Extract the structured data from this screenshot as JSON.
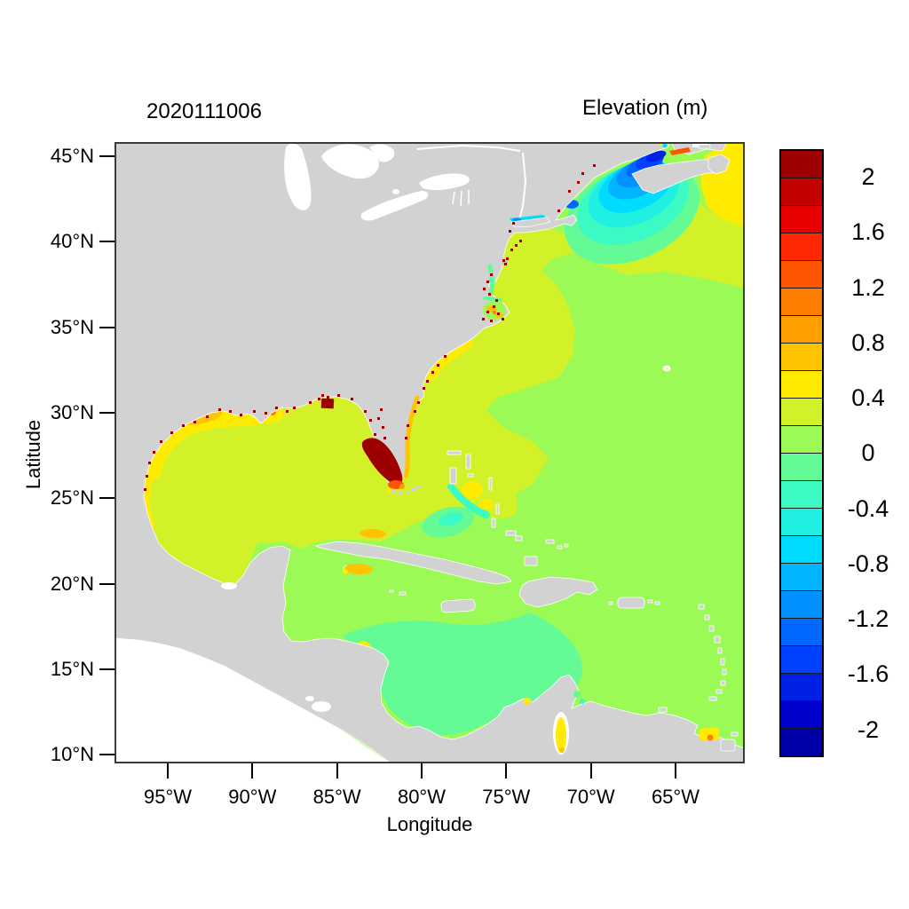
{
  "figure": {
    "left_title": "2020111006",
    "right_title": "Elevation (m)"
  },
  "x_axis": {
    "label": "Longitude",
    "ticks": [
      "95°W",
      "90°W",
      "85°W",
      "80°W",
      "75°W",
      "70°W",
      "65°W"
    ]
  },
  "y_axis": {
    "label": "Latitude",
    "ticks": [
      "45°N",
      "40°N",
      "35°N",
      "30°N",
      "25°N",
      "20°N",
      "15°N",
      "10°N"
    ]
  },
  "colorbar": {
    "title": "Elevation (m)",
    "tick_labels": [
      "2",
      "1.6",
      "1.2",
      "0.8",
      "0.4",
      "0",
      "-0.4",
      "-0.8",
      "-1.2",
      "-1.6",
      "-2"
    ],
    "levels": [
      {
        "from": 2.0,
        "to": 2.2,
        "color": "#9E0000"
      },
      {
        "from": 1.8,
        "to": 2.0,
        "color": "#C40000"
      },
      {
        "from": 1.6,
        "to": 1.8,
        "color": "#E80000"
      },
      {
        "from": 1.4,
        "to": 1.6,
        "color": "#FF2800"
      },
      {
        "from": 1.2,
        "to": 1.4,
        "color": "#FF5500"
      },
      {
        "from": 1.0,
        "to": 1.2,
        "color": "#FF7D00"
      },
      {
        "from": 0.8,
        "to": 1.0,
        "color": "#FFA000"
      },
      {
        "from": 0.6,
        "to": 0.8,
        "color": "#FFC300"
      },
      {
        "from": 0.4,
        "to": 0.6,
        "color": "#FFEB00"
      },
      {
        "from": 0.2,
        "to": 0.4,
        "color": "#D2F128"
      },
      {
        "from": 0.0,
        "to": 0.2,
        "color": "#9BFA55"
      },
      {
        "from": -0.2,
        "to": 0.0,
        "color": "#64FA95"
      },
      {
        "from": -0.4,
        "to": -0.2,
        "color": "#3BFAC3"
      },
      {
        "from": -0.6,
        "to": -0.4,
        "color": "#1FF0E1"
      },
      {
        "from": -0.8,
        "to": -0.6,
        "color": "#00DCFF"
      },
      {
        "from": -1.0,
        "to": -0.8,
        "color": "#00B4FF"
      },
      {
        "from": -1.2,
        "to": -1.0,
        "color": "#0090FF"
      },
      {
        "from": -1.4,
        "to": -1.2,
        "color": "#0068FF"
      },
      {
        "from": -1.6,
        "to": -1.4,
        "color": "#0041FF"
      },
      {
        "from": -1.8,
        "to": -1.6,
        "color": "#0020E6"
      },
      {
        "from": -2.0,
        "to": -1.8,
        "color": "#0000CE"
      },
      {
        "from": -2.2,
        "to": -2.0,
        "color": "#0000A8"
      }
    ]
  },
  "map_colors": {
    "land": "#D2D2D2",
    "outside_domain": "#FFFFFF",
    "lakes": "#FFFFFF",
    "frame": "#3A3A3A"
  },
  "chart_data": {
    "type": "heatmap",
    "subtype": "filled-contour geographic field",
    "title": "2020111006",
    "field": "Elevation (m)",
    "xlabel": "Longitude",
    "ylabel": "Latitude",
    "lon_range_deg_w": [
      98.2,
      60.9
    ],
    "lat_range_deg_n": [
      9.4,
      45.6
    ],
    "color_scale_range_m": [
      -2.2,
      2.2
    ],
    "color_step_m": 0.2,
    "colorbar_tick_values": [
      2,
      1.6,
      1.2,
      0.8,
      0.4,
      0,
      -0.4,
      -0.8,
      -1.2,
      -1.6,
      -2
    ],
    "legend_position": "right",
    "grid": false,
    "regions": [
      {
        "region": "Gulf of Mexico open water",
        "elevation_m": "0.2 to 0.4"
      },
      {
        "region": "Texas-Louisiana shelf coastal band",
        "elevation_m": "0.4 to 0.6"
      },
      {
        "region": "Louisiana nearshore patch",
        "elevation_m": "0.6 to 0.8"
      },
      {
        "region": "US east coast shelf (Florida to Long Island)",
        "elevation_m": "0.2 to 0.4"
      },
      {
        "region": "Open Atlantic and central Caribbean",
        "elevation_m": "0 to 0.2"
      },
      {
        "region": "Southwest Caribbean (Colombian basin)",
        "elevation_m": "-0.2 to 0"
      },
      {
        "region": "Southwest Florida / Everglades surge blob",
        "elevation_m": "greater than 2"
      },
      {
        "region": "Florida east coast nearshore band",
        "elevation_m": "0.6 to 0.8"
      },
      {
        "region": "Gulf of Maine rings (outer to inner)",
        "elevation_m": "-0.2 stepping down to -1.8"
      },
      {
        "region": "Bay of Fundy core",
        "elevation_m": "-1.6 to -2.0"
      },
      {
        "region": "Minas Basin streak",
        "elevation_m": "1.2 to 1.4"
      },
      {
        "region": "East of Nova Scotia / Scotian shelf",
        "elevation_m": "0.4 to 0.6"
      },
      {
        "region": "Honduras coast patch",
        "elevation_m": "0.4 to 0.6"
      },
      {
        "region": "Coastal estuary speckles (many)",
        "elevation_m": "greater than 2"
      }
    ]
  }
}
